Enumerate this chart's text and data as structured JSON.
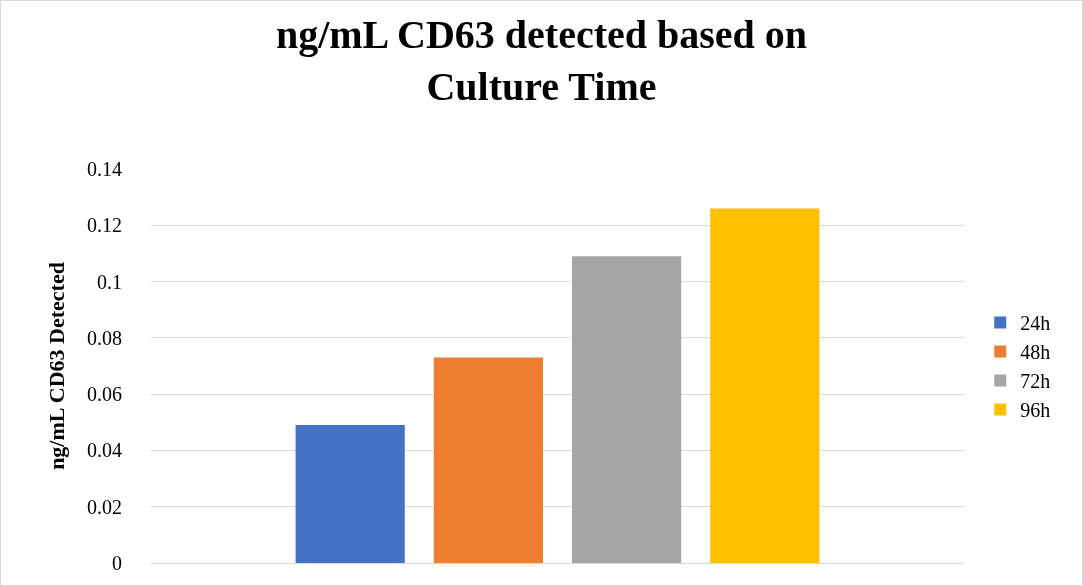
{
  "chart_data": {
    "type": "bar",
    "title": "ng/mL CD63 detected based on Culture Time",
    "ylabel": "ng/mL CD63 Detected",
    "categories": [
      null
    ],
    "series": [
      {
        "name": "24h",
        "color": "#4472c4",
        "values": [
          0.049
        ]
      },
      {
        "name": "48h",
        "color": "#ed7d31",
        "values": [
          0.073
        ]
      },
      {
        "name": "72h",
        "color": "#a5a5a5",
        "values": [
          0.109
        ]
      },
      {
        "name": "96h",
        "color": "#ffc000",
        "values": [
          0.126
        ]
      }
    ],
    "ylim": [
      0,
      0.14
    ],
    "yticks": [
      0,
      0.02,
      0.04,
      0.06,
      0.08,
      0.1,
      0.12,
      0.14
    ],
    "grid": "y",
    "legend": "right"
  }
}
